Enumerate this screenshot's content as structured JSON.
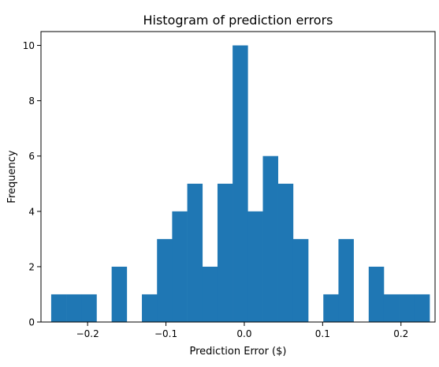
{
  "chart_data": {
    "type": "bar",
    "title": "Histogram of prediction errors",
    "xlabel": "Prediction Error ($)",
    "ylabel": "Frequency",
    "xlim": [
      -0.2595,
      0.2435
    ],
    "ylim": [
      0,
      10.5
    ],
    "xticks": [
      -0.2,
      -0.1,
      0.0,
      0.1,
      0.2
    ],
    "xtick_labels": [
      "−0.2",
      "−0.1",
      "0.0",
      "0.1",
      "0.2"
    ],
    "yticks": [
      0,
      2,
      4,
      6,
      8,
      10
    ],
    "ytick_labels": [
      "0",
      "2",
      "4",
      "6",
      "8",
      "10"
    ],
    "bin_edges": [
      -0.2465,
      -0.2272,
      -0.2079,
      -0.1886,
      -0.1693,
      -0.15,
      -0.1307,
      -0.1114,
      -0.0921,
      -0.0728,
      -0.0535,
      -0.0342,
      -0.0149,
      0.0044,
      0.0237,
      0.043,
      0.0623,
      0.0816,
      0.1009,
      0.1202,
      0.1395,
      0.1588,
      0.1781,
      0.1974,
      0.2167,
      0.2365
    ],
    "counts": [
      1,
      1,
      1,
      0,
      2,
      0,
      1,
      3,
      4,
      5,
      2,
      5,
      10,
      4,
      6,
      5,
      3,
      0,
      1,
      3,
      0,
      2,
      1,
      1,
      1
    ],
    "bar_color": "#1f77b4",
    "grid": false,
    "legend": "none"
  }
}
